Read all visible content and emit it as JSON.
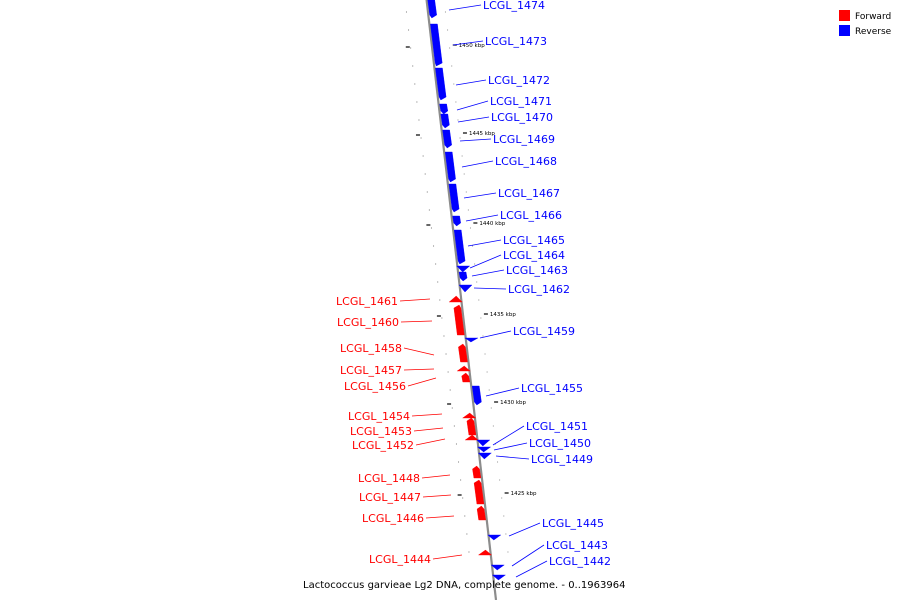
{
  "legend": {
    "items": [
      {
        "label": "Forward",
        "color": "#ff0000"
      },
      {
        "label": "Reverse",
        "color": "#0000ff"
      }
    ]
  },
  "caption": "Lactococcus garvieae Lg2 DNA, complete genome. - 0..1963964",
  "colors": {
    "forward": "#ff0000",
    "reverse": "#0000ff",
    "backbone": "#8c8c8c"
  },
  "scale_ticks": [
    "1450 kbp",
    "1445 kbp",
    "1440 kbp",
    "1435 kbp",
    "1430 kbp",
    "1425 kbp"
  ],
  "genes": [
    {
      "name": "LCGL_1474",
      "strand": "reverse"
    },
    {
      "name": "LCGL_1473",
      "strand": "reverse"
    },
    {
      "name": "LCGL_1472",
      "strand": "reverse"
    },
    {
      "name": "LCGL_1471",
      "strand": "reverse"
    },
    {
      "name": "LCGL_1470",
      "strand": "reverse"
    },
    {
      "name": "LCGL_1469",
      "strand": "reverse"
    },
    {
      "name": "LCGL_1468",
      "strand": "reverse"
    },
    {
      "name": "LCGL_1467",
      "strand": "reverse"
    },
    {
      "name": "LCGL_1466",
      "strand": "reverse"
    },
    {
      "name": "LCGL_1465",
      "strand": "reverse"
    },
    {
      "name": "LCGL_1464",
      "strand": "reverse"
    },
    {
      "name": "LCGL_1463",
      "strand": "reverse"
    },
    {
      "name": "LCGL_1462",
      "strand": "reverse"
    },
    {
      "name": "LCGL_1461",
      "strand": "forward"
    },
    {
      "name": "LCGL_1460",
      "strand": "forward"
    },
    {
      "name": "LCGL_1459",
      "strand": "reverse"
    },
    {
      "name": "LCGL_1458",
      "strand": "forward"
    },
    {
      "name": "LCGL_1457",
      "strand": "forward"
    },
    {
      "name": "LCGL_1456",
      "strand": "forward"
    },
    {
      "name": "LCGL_1455",
      "strand": "reverse"
    },
    {
      "name": "LCGL_1454",
      "strand": "forward"
    },
    {
      "name": "LCGL_1453",
      "strand": "forward"
    },
    {
      "name": "LCGL_1452",
      "strand": "forward"
    },
    {
      "name": "LCGL_1451",
      "strand": "reverse"
    },
    {
      "name": "LCGL_1450",
      "strand": "reverse"
    },
    {
      "name": "LCGL_1449",
      "strand": "reverse"
    },
    {
      "name": "LCGL_1448",
      "strand": "forward"
    },
    {
      "name": "LCGL_1447",
      "strand": "forward"
    },
    {
      "name": "LCGL_1446",
      "strand": "forward"
    },
    {
      "name": "LCGL_1445",
      "strand": "reverse"
    },
    {
      "name": "LCGL_1444",
      "strand": "forward"
    },
    {
      "name": "LCGL_1443",
      "strand": "reverse"
    },
    {
      "name": "LCGL_1442",
      "strand": "reverse"
    }
  ]
}
